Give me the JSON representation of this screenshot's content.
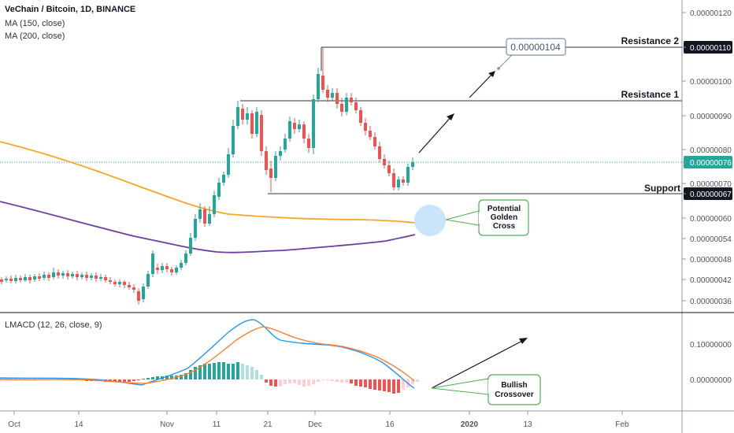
{
  "symbol_title": "VeChain / Bitcoin, 1D, BINANCE",
  "indicators": {
    "ma150": "MA (150, close)",
    "ma200": "MA (200, close)",
    "lmacd": "LMACD (12, 26, close, 9)"
  },
  "annotations": {
    "resistance2": "Resistance 2",
    "resistance1": "Resistance 1",
    "support": "Support",
    "target_value": "0.00000104",
    "golden_cross": [
      "Potential",
      "Golden",
      "Cross"
    ],
    "bullish": [
      "Bullish",
      "Crossover"
    ]
  },
  "colors": {
    "up": "#26a69a",
    "down": "#ef5350",
    "ma150": "#f5a623",
    "ma200": "#6a3fa0",
    "macd": "#2196f3",
    "signal": "#ff7f27",
    "callout": "#4caf50"
  },
  "chart_data": {
    "type": "candlestick",
    "x_ticks": [
      "Oct",
      "14",
      "Nov",
      "11",
      "21",
      "Dec",
      "16",
      "2020",
      "13",
      "Feb"
    ],
    "price_axis": {
      "ticks": [
        "0.00000120",
        "0.00000110",
        "0.00000100",
        "0.00000090",
        "0.00000080",
        "0.00000076",
        "0.00000070",
        "0.00000067",
        "0.00000060",
        "0.00000054",
        "0.00000048",
        "0.00000042",
        "0.00000036"
      ],
      "ylim": [
        3.2e-07,
        1.22e-06
      ]
    },
    "macd_axis": {
      "ticks": [
        "0.10000000",
        "0.00000000"
      ]
    },
    "levels": {
      "resistance2": 1.1e-06,
      "resistance1": 9.4e-07,
      "support": 6.7e-07,
      "last_price": 7.6e-07
    },
    "series": [
      {
        "name": "MA (150, close)",
        "values": [
          8.7e-07,
          8.4e-07,
          8.1e-07,
          7.7e-07,
          7.3e-07,
          6.9e-07,
          6.4e-07,
          6.1e-07,
          5.95e-07,
          5.88e-07,
          5.84e-07
        ]
      },
      {
        "name": "MA (200, close)",
        "values": [
          6.5e-07,
          6.2e-07,
          5.9e-07,
          5.65e-07,
          5.2e-07,
          5.05e-07,
          5.05e-07,
          5.1e-07,
          5.15e-07,
          5.25e-07,
          5.36e-07
        ]
      },
      {
        "name": "LMACD",
        "values": [
          0.0,
          0.0,
          0.01,
          0.0,
          -0.01,
          0.03,
          0.14,
          0.17,
          0.08,
          0.1,
          0.05,
          -0.03
        ]
      },
      {
        "name": "Signal",
        "values": [
          -0.01,
          0.0,
          0.0,
          0.0,
          0.0,
          0.03,
          0.1,
          0.15,
          0.12,
          0.1,
          0.07,
          0.0
        ]
      }
    ]
  }
}
